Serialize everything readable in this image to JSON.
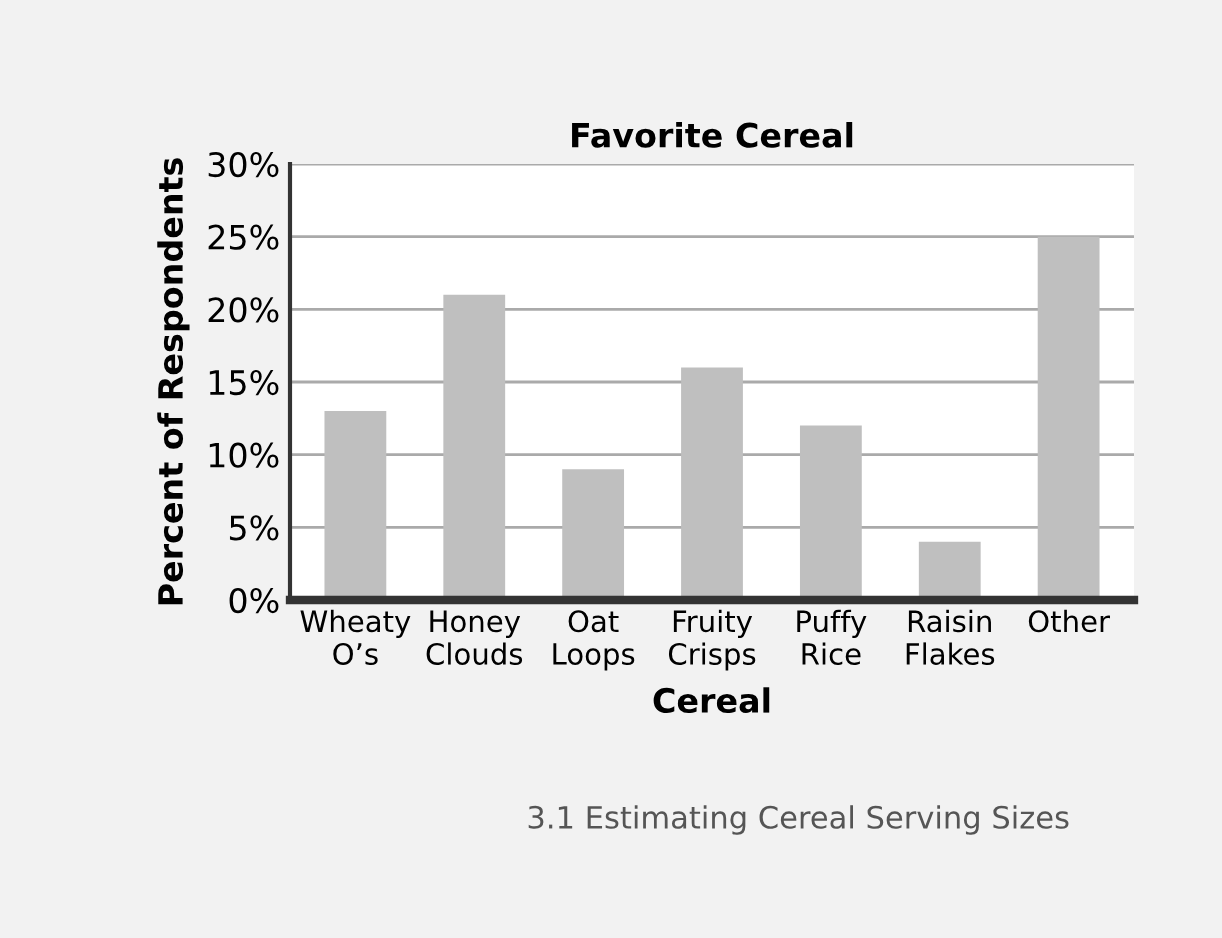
{
  "chart_data": {
    "type": "bar",
    "title": "Favorite Cereal",
    "xlabel": "Cereal",
    "ylabel": "Percent of Respondents",
    "categories": [
      "Wheaty\nO’s",
      "Honey\nClouds",
      "Oat\nLoops",
      "Fruity\nCrisps",
      "Puffy\nRice",
      "Raisin\nFlakes",
      "Other"
    ],
    "values": [
      13,
      21,
      9,
      16,
      12,
      4,
      25
    ],
    "color": "#bfbfbf",
    "ylim": [
      0,
      30
    ],
    "yticks": [
      {
        "value": 0,
        "label": "0%"
      },
      {
        "value": 5,
        "label": "5%"
      },
      {
        "value": 10,
        "label": "10%"
      },
      {
        "value": 15,
        "label": "15%"
      },
      {
        "value": 20,
        "label": "20%"
      },
      {
        "value": 25,
        "label": "25%"
      },
      {
        "value": 30,
        "label": "30%"
      }
    ],
    "grid": "y",
    "annotations": [
      "3.1 Estimating Cereal Serving Sizes"
    ]
  }
}
